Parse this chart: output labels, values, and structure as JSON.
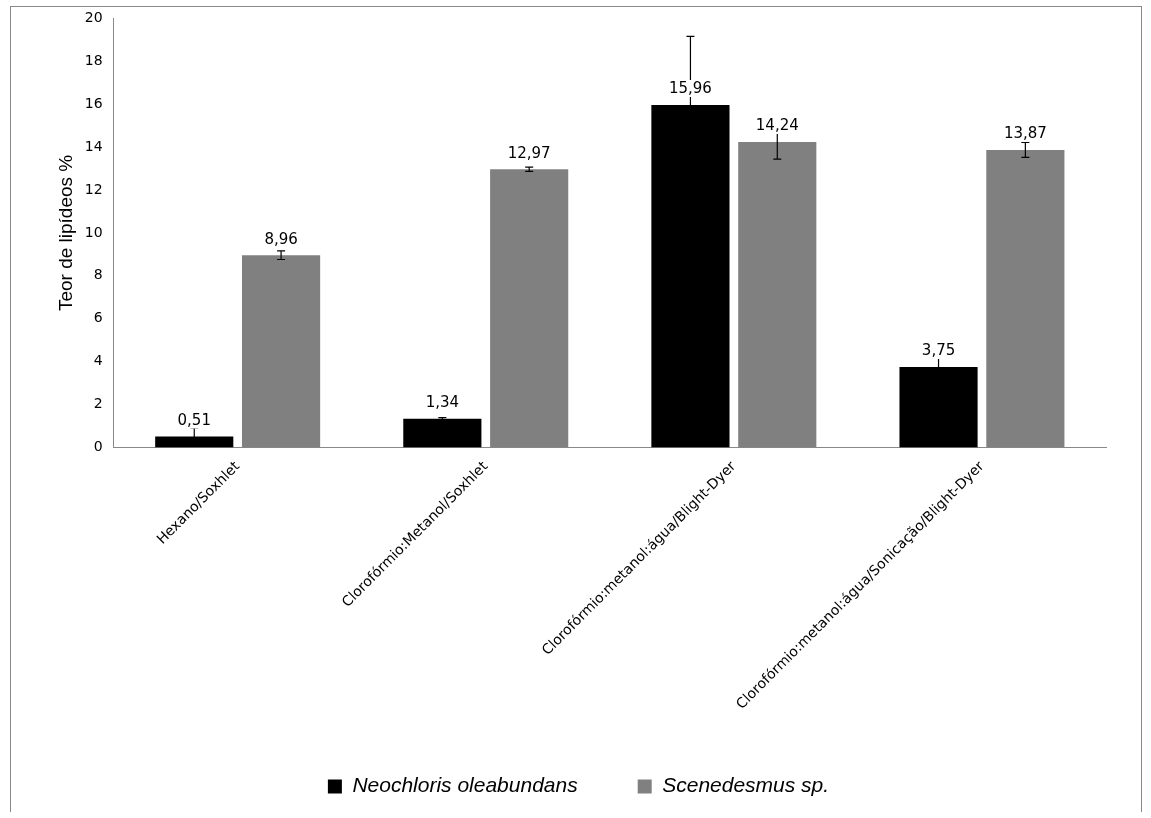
{
  "chart_data": {
    "type": "bar",
    "ylabel": "Teor de lipídeos %",
    "categories": [
      "Hexano/Soxhlet",
      "Clorofórmio:Metanol/Soxhlet",
      "Clorofórmio:metanol:água/Blight-Dyer",
      "Clorofórmio:metanol:água/Sonicação/Blight-Dyer"
    ],
    "series": [
      {
        "name": "Neochloris oleabundans",
        "color": "#000000",
        "values": [
          0.51,
          1.34,
          15.96,
          3.75
        ],
        "errors": [
          0.4,
          0.05,
          3.2,
          0.5
        ],
        "value_labels": [
          "0,51",
          "1,34",
          "15,96",
          "3,75"
        ]
      },
      {
        "name": "Scenedesmus sp.",
        "color": "#808080",
        "values": [
          8.96,
          12.97,
          14.24,
          13.87
        ],
        "errors": [
          0.2,
          0.1,
          0.8,
          0.35
        ],
        "value_labels": [
          "8,96",
          "12,97",
          "14,24",
          "13,87"
        ]
      }
    ],
    "ylim": [
      0,
      20
    ],
    "yticks": [
      0,
      2,
      4,
      6,
      8,
      10,
      12,
      14,
      16,
      18,
      20
    ],
    "grid": false,
    "legend": "bottom"
  }
}
